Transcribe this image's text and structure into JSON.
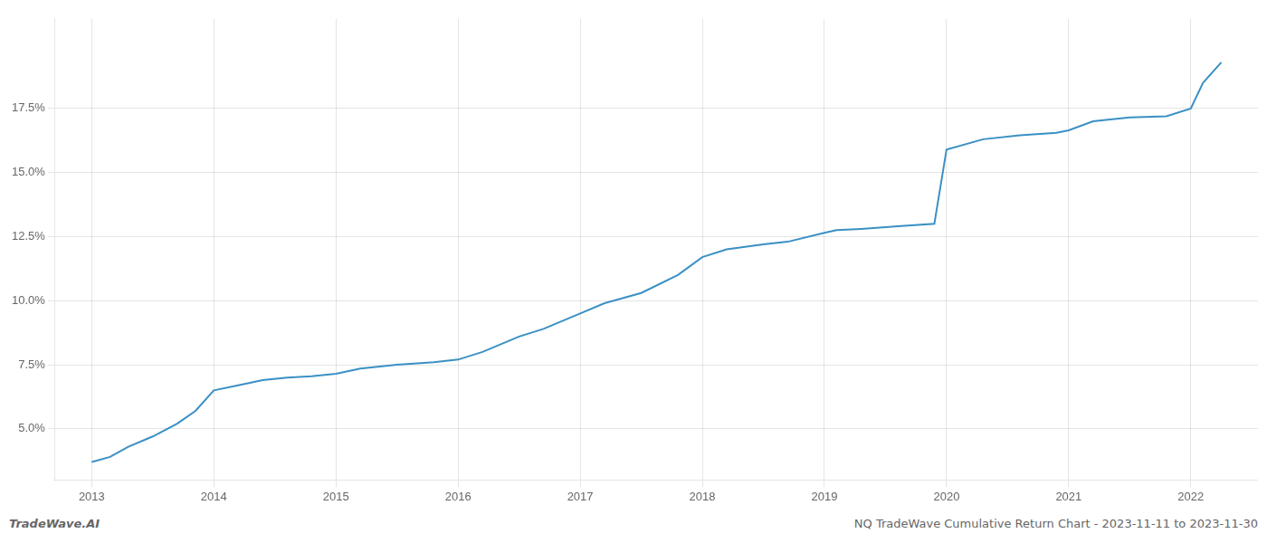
{
  "chart_data": {
    "type": "line",
    "title": "NQ TradeWave Cumulative Return Chart - 2023-11-11 to 2023-11-30",
    "annotations": [
      "TradeWave.AI"
    ],
    "x": [
      2013.0,
      2013.15,
      2013.3,
      2013.5,
      2013.7,
      2013.85,
      2014.0,
      2014.2,
      2014.4,
      2014.6,
      2014.8,
      2015.0,
      2015.2,
      2015.5,
      2015.8,
      2016.0,
      2016.2,
      2016.5,
      2016.7,
      2017.0,
      2017.2,
      2017.5,
      2017.8,
      2018.0,
      2018.2,
      2018.5,
      2018.7,
      2019.0,
      2019.1,
      2019.3,
      2019.6,
      2019.9,
      2020.0,
      2020.3,
      2020.6,
      2020.9,
      2021.0,
      2021.2,
      2021.5,
      2021.8,
      2022.0,
      2022.1,
      2022.25
    ],
    "values": [
      3.7,
      3.9,
      4.3,
      4.7,
      5.2,
      5.7,
      6.5,
      6.7,
      6.9,
      7.0,
      7.05,
      7.15,
      7.35,
      7.5,
      7.6,
      7.7,
      8.0,
      8.6,
      8.9,
      9.5,
      9.9,
      10.3,
      11.0,
      11.7,
      12.0,
      12.2,
      12.3,
      12.65,
      12.75,
      12.8,
      12.9,
      13.0,
      15.9,
      16.3,
      16.45,
      16.55,
      16.65,
      17.0,
      17.15,
      17.2,
      17.5,
      18.5,
      19.3
    ],
    "color": "#3a90c4",
    "xlim": [
      2012.7,
      2022.55
    ],
    "ylim": [
      3.0,
      21.0
    ],
    "xticks": [
      2013,
      2014,
      2015,
      2016,
      2017,
      2018,
      2019,
      2020,
      2021,
      2022
    ],
    "yticks": [
      {
        "value": 5.0,
        "label": "5.0%"
      },
      {
        "value": 7.5,
        "label": "7.5%"
      },
      {
        "value": 10.0,
        "label": "10.0%"
      },
      {
        "value": 12.5,
        "label": "12.5%"
      },
      {
        "value": 15.0,
        "label": "15.0%"
      },
      {
        "value": 17.5,
        "label": "17.5%"
      }
    ],
    "grid": true
  }
}
